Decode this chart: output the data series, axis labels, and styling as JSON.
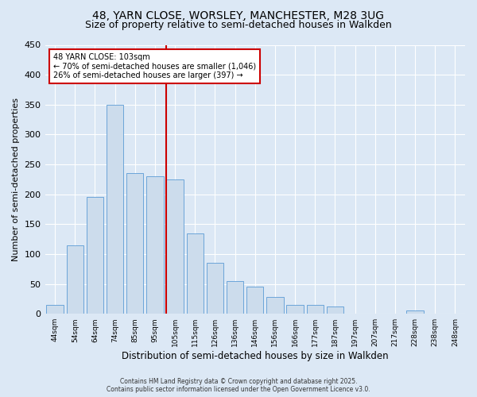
{
  "title": "48, YARN CLOSE, WORSLEY, MANCHESTER, M28 3UG",
  "subtitle": "Size of property relative to semi-detached houses in Walkden",
  "xlabel": "Distribution of semi-detached houses by size in Walkden",
  "ylabel": "Number of semi-detached properties",
  "categories": [
    "44sqm",
    "54sqm",
    "64sqm",
    "74sqm",
    "85sqm",
    "95sqm",
    "105sqm",
    "115sqm",
    "126sqm",
    "136sqm",
    "146sqm",
    "156sqm",
    "166sqm",
    "177sqm",
    "187sqm",
    "197sqm",
    "207sqm",
    "217sqm",
    "228sqm",
    "238sqm",
    "248sqm"
  ],
  "values": [
    15,
    115,
    195,
    350,
    235,
    230,
    225,
    135,
    85,
    55,
    45,
    28,
    15,
    15,
    12,
    0,
    0,
    0,
    5,
    0,
    0
  ],
  "bar_color": "#ccdcec",
  "bar_edgecolor": "#5b9bd5",
  "marker_bin_index": 6,
  "annotation_text_line1": "48 YARN CLOSE: 103sqm",
  "annotation_text_line2": "← 70% of semi-detached houses are smaller (1,046)",
  "annotation_text_line3": "26% of semi-detached houses are larger (397) →",
  "ylim": [
    0,
    450
  ],
  "yticks": [
    0,
    50,
    100,
    150,
    200,
    250,
    300,
    350,
    400,
    450
  ],
  "background_color": "#dce8f5",
  "plot_background": "#dce8f5",
  "footer_line1": "Contains HM Land Registry data © Crown copyright and database right 2025.",
  "footer_line2": "Contains public sector information licensed under the Open Government Licence v3.0.",
  "title_fontsize": 10,
  "subtitle_fontsize": 9,
  "red_line_color": "#cc0000",
  "annotation_box_edgecolor": "#cc0000",
  "grid_color": "#ffffff"
}
